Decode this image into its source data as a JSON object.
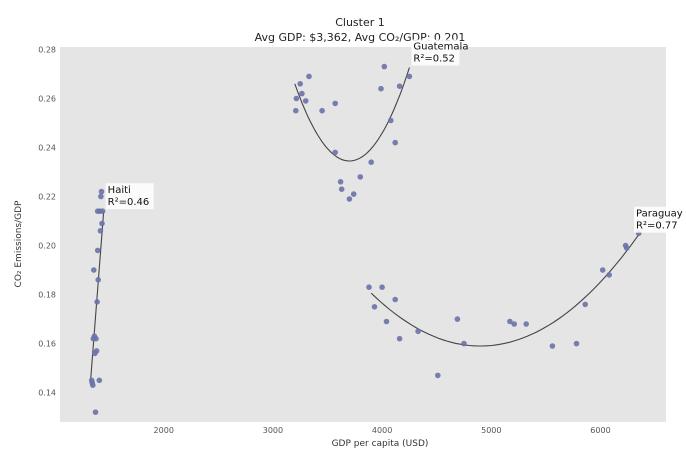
{
  "chart_data": {
    "type": "scatter",
    "title": "Cluster 1",
    "subtitle": "Avg GDP: $3,362, Avg CO₂/GDP: 0.201",
    "xlabel": "GDP per capita (USD)",
    "ylabel": "CO₂ Emissions/GDP",
    "xlim": [
      1050,
      6600
    ],
    "ylim": [
      0.128,
      0.281
    ],
    "xticks": [
      2000,
      3000,
      4000,
      5000,
      6000
    ],
    "yticks": [
      0.14,
      0.16,
      0.18,
      0.2,
      0.22,
      0.24,
      0.26,
      0.28
    ],
    "grid": false,
    "background": "#e5e5e5",
    "point_color": "#6a72a8",
    "fit_color": "#444444",
    "groups": [
      {
        "label": "Haiti",
        "r2_label": "R²=0.46",
        "points": [
          [
            1340,
            0.145
          ],
          [
            1345,
            0.144
          ],
          [
            1350,
            0.143
          ],
          [
            1355,
            0.162
          ],
          [
            1365,
            0.163
          ],
          [
            1360,
            0.19
          ],
          [
            1370,
            0.156
          ],
          [
            1375,
            0.132
          ],
          [
            1380,
            0.162
          ],
          [
            1385,
            0.157
          ],
          [
            1390,
            0.177
          ],
          [
            1395,
            0.198
          ],
          [
            1400,
            0.186
          ],
          [
            1395,
            0.214
          ],
          [
            1410,
            0.145
          ],
          [
            1415,
            0.214
          ],
          [
            1420,
            0.206
          ],
          [
            1425,
            0.22
          ],
          [
            1430,
            0.222
          ],
          [
            1435,
            0.209
          ],
          [
            1440,
            0.214
          ]
        ],
        "fit": {
          "kind": "linear",
          "x": [
            1330,
            1450
          ],
          "y": [
            0.145,
            0.214
          ]
        }
      },
      {
        "label": "Guatemala",
        "r2_label": "R²=0.52",
        "points": [
          [
            3210,
            0.255
          ],
          [
            3215,
            0.26
          ],
          [
            3250,
            0.266
          ],
          [
            3265,
            0.262
          ],
          [
            3300,
            0.259
          ],
          [
            3330,
            0.269
          ],
          [
            3450,
            0.255
          ],
          [
            3570,
            0.258
          ],
          [
            3570,
            0.238
          ],
          [
            3620,
            0.226
          ],
          [
            3630,
            0.223
          ],
          [
            3700,
            0.219
          ],
          [
            3740,
            0.221
          ],
          [
            3800,
            0.228
          ],
          [
            3900,
            0.234
          ],
          [
            3990,
            0.264
          ],
          [
            4020,
            0.273
          ],
          [
            4080,
            0.251
          ],
          [
            4120,
            0.242
          ],
          [
            4160,
            0.265
          ],
          [
            4250,
            0.269
          ]
        ],
        "fit": {
          "kind": "quadratic",
          "x": [
            3200,
            4250
          ],
          "vertex": [
            3700,
            0.2345
          ],
          "a": 1.26e-07
        }
      },
      {
        "label": "Paraguay",
        "r2_label": "R²=0.77",
        "points": [
          [
            3880,
            0.183
          ],
          [
            3930,
            0.175
          ],
          [
            4000,
            0.183
          ],
          [
            4040,
            0.169
          ],
          [
            4120,
            0.178
          ],
          [
            4160,
            0.162
          ],
          [
            4330,
            0.165
          ],
          [
            4510,
            0.147
          ],
          [
            4690,
            0.17
          ],
          [
            4750,
            0.16
          ],
          [
            5170,
            0.169
          ],
          [
            5210,
            0.168
          ],
          [
            5320,
            0.168
          ],
          [
            5560,
            0.159
          ],
          [
            5780,
            0.16
          ],
          [
            5860,
            0.176
          ],
          [
            6020,
            0.19
          ],
          [
            6080,
            0.188
          ],
          [
            6230,
            0.2
          ],
          [
            6240,
            0.199
          ],
          [
            6350,
            0.205
          ]
        ],
        "fit": {
          "kind": "quadratic",
          "x": [
            3900,
            6350
          ],
          "vertex": [
            4900,
            0.159
          ],
          "a": 2.16e-08
        }
      }
    ]
  }
}
